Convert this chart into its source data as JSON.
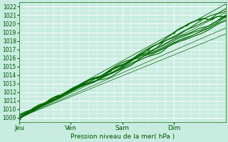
{
  "title": "",
  "xlabel": "Pression niveau de la mer( hPa )",
  "ylabel": "",
  "ylim": [
    1008.5,
    1022.5
  ],
  "yticks": [
    1009,
    1010,
    1011,
    1012,
    1013,
    1014,
    1015,
    1016,
    1017,
    1018,
    1019,
    1020,
    1021,
    1022
  ],
  "xlim": [
    0,
    96
  ],
  "xtick_positions": [
    0,
    24,
    48,
    72
  ],
  "xtick_labels": [
    "Jeu",
    "Ven",
    "Sam",
    "Dim"
  ],
  "bg_color": "#c8ede0",
  "plot_bg_color": "#c8ede0",
  "grid_color": "#ffffff",
  "line_color": "#006600",
  "n_hours": 97,
  "figsize": [
    3.2,
    2.0
  ],
  "dpi": 100
}
